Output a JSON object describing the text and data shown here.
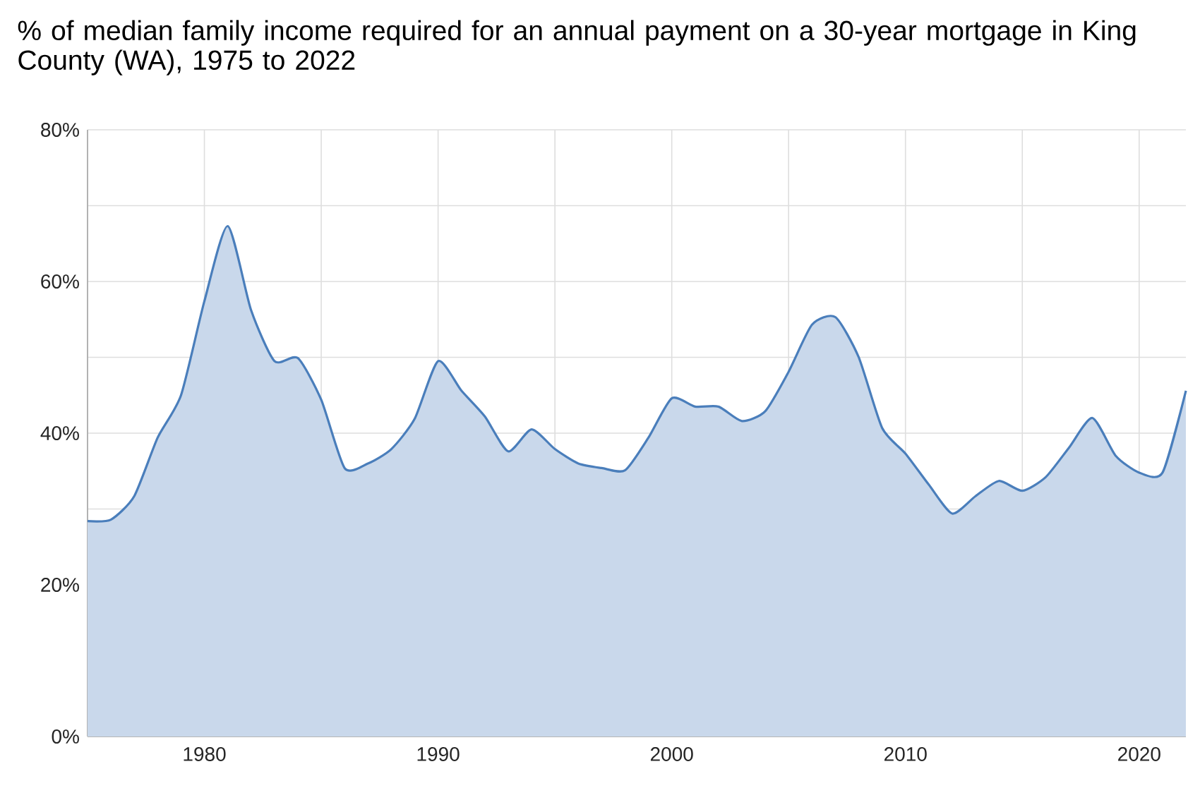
{
  "chart_data": {
    "type": "area",
    "title": "% of median family income required for an annual payment on a 30-year mortgage in King County (WA), 1975 to 2022",
    "x": [
      1975,
      1976,
      1977,
      1978,
      1979,
      1980,
      1981,
      1982,
      1983,
      1984,
      1985,
      1986,
      1987,
      1988,
      1989,
      1990,
      1991,
      1992,
      1993,
      1994,
      1995,
      1996,
      1997,
      1998,
      1999,
      2000,
      2001,
      2002,
      2003,
      2004,
      2005,
      2006,
      2007,
      2008,
      2009,
      2010,
      2011,
      2012,
      2013,
      2014,
      2015,
      2016,
      2017,
      2018,
      2019,
      2020,
      2021,
      2022
    ],
    "values": [
      28.4,
      28.6,
      31.7,
      39.4,
      45.0,
      57.4,
      67.3,
      56.2,
      49.5,
      49.9,
      44.4,
      35.4,
      36.0,
      37.9,
      41.9,
      49.5,
      45.6,
      42.2,
      37.6,
      40.5,
      37.9,
      36.0,
      35.4,
      35.1,
      39.4,
      44.6,
      43.5,
      43.5,
      41.6,
      42.9,
      48.1,
      54.3,
      55.3,
      50.0,
      40.7,
      37.3,
      33.2,
      29.4,
      31.7,
      33.7,
      32.4,
      34.2,
      38.1,
      42.0,
      37.0,
      34.8,
      34.8,
      45.6
    ],
    "color": "#4a7ebb",
    "xlim": [
      1975,
      2022
    ],
    "xticks": [
      {
        "value": 1975,
        "label": null
      },
      1980,
      {
        "value": 1985,
        "label": null
      },
      1990,
      {
        "value": 1995,
        "label": null
      },
      2000,
      {
        "value": 2005,
        "label": null
      },
      2010,
      {
        "value": 2015,
        "label": null
      },
      2020
    ],
    "ylim": [
      0,
      80
    ],
    "yticks": [
      {
        "value": 0,
        "label": "0%"
      },
      {
        "value": 10,
        "label": null
      },
      {
        "value": 20,
        "label": "20%"
      },
      {
        "value": 30,
        "label": null
      },
      {
        "value": 40,
        "label": "40%"
      },
      {
        "value": 50,
        "label": null
      },
      {
        "value": 60,
        "label": "60%"
      },
      {
        "value": 70,
        "label": null
      },
      {
        "value": 80,
        "label": "80%"
      }
    ],
    "grid": true,
    "marker": "none",
    "line_style": "solid"
  }
}
